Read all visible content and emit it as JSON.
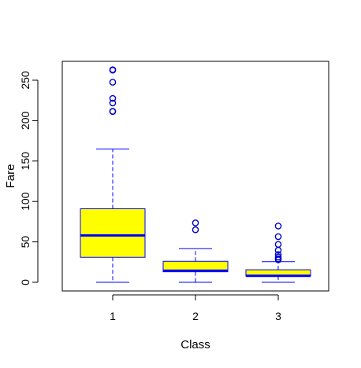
{
  "chart_data": {
    "type": "boxplot",
    "title": "",
    "xlabel": "Class",
    "ylabel": "Fare",
    "categories": [
      "1",
      "2",
      "3"
    ],
    "yticks": [
      0,
      50,
      100,
      150,
      200,
      250
    ],
    "ylim": [
      -10,
      275
    ],
    "grid": false,
    "colors": {
      "box_fill": "#ffff00",
      "box_border": "#0000ff",
      "median": "#0000ff",
      "whisker": "#0000ff",
      "outlier": "#0000cc",
      "frame": "#000000"
    },
    "boxes": [
      {
        "category": "1",
        "whisker_low": 0,
        "q1": 30.9,
        "median": 58,
        "q3": 91,
        "whisker_high": 164.9,
        "outliers": [
          211.3,
          211.5,
          221.8,
          227.5,
          247.5,
          262.4,
          263
        ]
      },
      {
        "category": "2",
        "whisker_low": 0,
        "q1": 13,
        "median": 14.3,
        "q3": 26,
        "whisker_high": 41.6,
        "outliers": [
          65,
          73.5
        ]
      },
      {
        "category": "3",
        "whisker_low": 0,
        "q1": 7.75,
        "median": 8.05,
        "q3": 15.5,
        "whisker_high": 25.5,
        "outliers": [
          27.9,
          29.1,
          31.3,
          34.4,
          39.7,
          46.9,
          56.5,
          69.6
        ]
      }
    ]
  }
}
